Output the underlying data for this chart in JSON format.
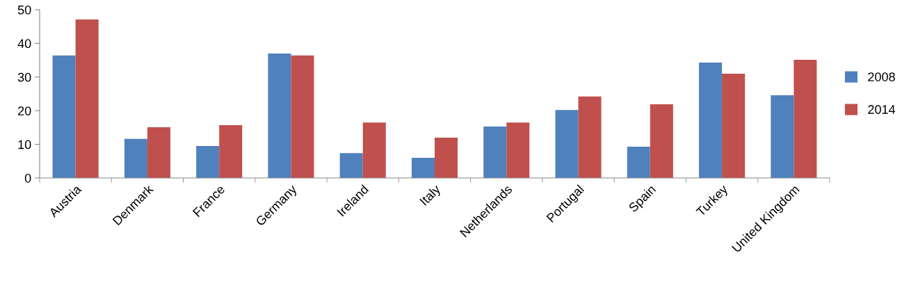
{
  "chart_data": {
    "type": "bar",
    "categories": [
      "Austria",
      "Denmark",
      "France",
      "Germany",
      "Ireland",
      "Italy",
      "Netherlands",
      "Portugal",
      "Spain",
      "Turkey",
      "United Kingdom"
    ],
    "series": [
      {
        "name": "2008",
        "color": "#4f81bd",
        "values": [
          36.4,
          11.6,
          9.5,
          37.0,
          7.4,
          6.0,
          15.3,
          20.2,
          9.3,
          34.3,
          24.6
        ]
      },
      {
        "name": "2014",
        "color": "#c0504d",
        "values": [
          47.1,
          15.1,
          15.7,
          36.4,
          16.5,
          12.0,
          16.5,
          24.2,
          21.9,
          31.0,
          35.1
        ]
      }
    ],
    "ylim": [
      0,
      50
    ],
    "yticks": [
      0,
      10,
      20,
      30,
      40,
      50
    ],
    "grid": false,
    "legend": "right"
  }
}
